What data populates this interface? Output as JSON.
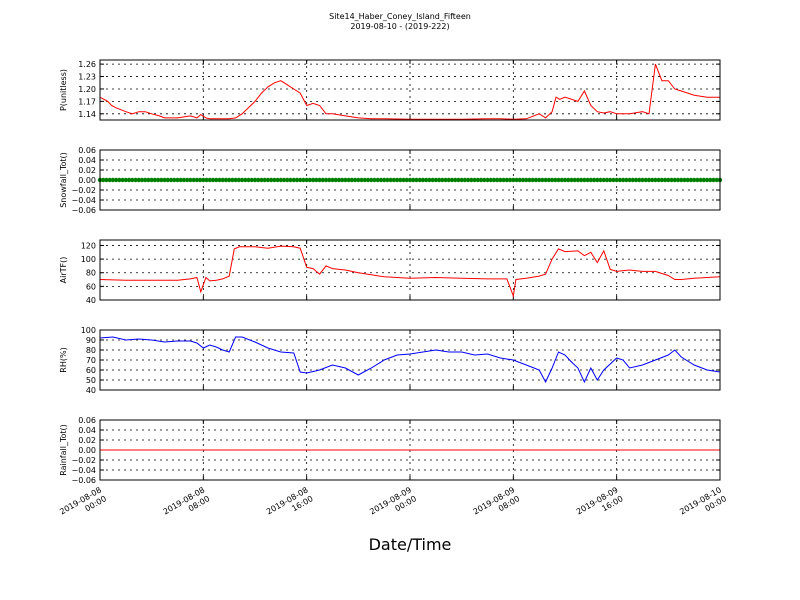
{
  "figure": {
    "title_line1": "Site14_Haber_Coney_Island_Fifteen",
    "title_line2": "2019-08-10 - (2019-222)",
    "xlabel": "Date/Time"
  },
  "chart_data": [
    {
      "type": "line",
      "ylabel": "P(unitless)",
      "color": "#ff0000",
      "xlim": [
        0,
        48
      ],
      "ylim": [
        1.125,
        1.27
      ],
      "yticks": [
        "1.26",
        "1.23",
        "1.20",
        "1.17",
        "1.14"
      ],
      "ytick_values": [
        1.26,
        1.23,
        1.2,
        1.17,
        1.14
      ],
      "grid": true,
      "x": [
        0,
        0.6,
        0.9,
        1.2,
        2,
        2.5,
        3,
        3.5,
        4,
        4.6,
        5,
        6,
        7,
        7.5,
        7.8,
        8.2,
        8.5,
        10,
        10.5,
        11,
        12,
        12.5,
        13,
        13.5,
        14,
        14.5,
        15,
        15.5,
        16,
        16.5,
        17,
        17.5,
        18,
        19,
        20,
        21,
        22,
        24,
        26,
        28,
        30,
        31,
        32,
        33,
        34,
        34.5,
        35,
        35.3,
        35.6,
        36,
        37,
        37.5,
        38,
        38.5,
        39,
        39.5,
        40,
        41,
        42,
        42.5,
        43,
        43.5,
        44,
        44.5,
        45,
        46,
        47,
        48
      ],
      "values": [
        1.18,
        1.17,
        1.16,
        1.155,
        1.145,
        1.14,
        1.145,
        1.145,
        1.14,
        1.135,
        1.13,
        1.13,
        1.135,
        1.13,
        1.138,
        1.13,
        1.128,
        1.128,
        1.13,
        1.14,
        1.17,
        1.19,
        1.205,
        1.215,
        1.22,
        1.21,
        1.2,
        1.19,
        1.16,
        1.165,
        1.16,
        1.14,
        1.14,
        1.135,
        1.13,
        1.128,
        1.128,
        1.127,
        1.127,
        1.127,
        1.128,
        1.128,
        1.127,
        1.128,
        1.14,
        1.13,
        1.145,
        1.18,
        1.175,
        1.18,
        1.17,
        1.195,
        1.16,
        1.145,
        1.142,
        1.145,
        1.14,
        1.14,
        1.145,
        1.14,
        1.26,
        1.22,
        1.22,
        1.2,
        1.195,
        1.185,
        1.18,
        1.18
      ]
    },
    {
      "type": "scatter",
      "ylabel": "Snowfall_Tot()",
      "color": "#008000",
      "xlim": [
        0,
        48
      ],
      "ylim": [
        -0.06,
        0.06
      ],
      "yticks": [
        "0.06",
        "0.04",
        "0.02",
        "0.00",
        "−0.02",
        "−0.04",
        "−0.06"
      ],
      "ytick_values": [
        0.06,
        0.04,
        0.02,
        0.0,
        -0.02,
        -0.04,
        -0.06
      ],
      "grid": true,
      "constant_value": 0.0
    },
    {
      "type": "line",
      "ylabel": "AirTF()",
      "color": "#ff0000",
      "xlim": [
        0,
        48
      ],
      "ylim": [
        40,
        128
      ],
      "yticks": [
        "120",
        "100",
        "80",
        "60",
        "40"
      ],
      "ytick_values": [
        120,
        100,
        80,
        60,
        40
      ],
      "grid": true,
      "x": [
        0,
        2,
        4,
        6,
        7,
        7.5,
        7.8,
        8.2,
        8.5,
        9,
        9.5,
        10,
        10.4,
        10.8,
        12,
        13,
        14,
        15,
        15.5,
        16,
        16.5,
        17,
        17.5,
        18,
        19,
        20,
        21,
        22,
        24,
        26,
        28,
        30,
        31.5,
        32,
        32.2,
        33,
        34,
        34.5,
        35,
        35.5,
        36,
        37,
        37.5,
        38,
        38.5,
        39,
        39.5,
        40,
        41,
        42,
        43,
        44,
        44.5,
        45,
        46,
        47,
        48
      ],
      "values": [
        70,
        69,
        69,
        69,
        71,
        73,
        52,
        73,
        68,
        69,
        71,
        75,
        115,
        118,
        118,
        116,
        119,
        118,
        116,
        88,
        86,
        78,
        90,
        86,
        84,
        80,
        77,
        74,
        72,
        73,
        72,
        71,
        71,
        46,
        70,
        72,
        75,
        78,
        100,
        115,
        111,
        112,
        105,
        110,
        95,
        112,
        85,
        82,
        84,
        82,
        82,
        76,
        70,
        70,
        72,
        73,
        74
      ]
    },
    {
      "type": "line",
      "ylabel": "RH(%)",
      "color": "#0000ff",
      "xlim": [
        0,
        48
      ],
      "ylim": [
        40,
        100
      ],
      "yticks": [
        "100",
        "90",
        "80",
        "70",
        "60",
        "50",
        "40"
      ],
      "ytick_values": [
        100,
        90,
        80,
        70,
        60,
        50,
        40
      ],
      "grid": true,
      "x": [
        0,
        1,
        2,
        3,
        4,
        5,
        6,
        7,
        7.5,
        8,
        8.5,
        9,
        9.5,
        10,
        10.5,
        11,
        12,
        13,
        14,
        15,
        15.5,
        16,
        17,
        18,
        19,
        20,
        21,
        22,
        23,
        24,
        25,
        26,
        27,
        28,
        29,
        30,
        31,
        32,
        33,
        34,
        34.5,
        35,
        35.5,
        36,
        36.5,
        37,
        37.5,
        38,
        38.5,
        39,
        40,
        40.5,
        41,
        42,
        43,
        44,
        44.5,
        45,
        46,
        47,
        48
      ],
      "values": [
        92,
        93,
        90,
        91,
        90,
        88,
        89,
        89,
        87,
        82,
        85,
        83,
        80,
        78,
        93,
        93,
        88,
        82,
        78,
        77,
        58,
        57,
        60,
        65,
        62,
        55,
        62,
        70,
        75,
        76,
        78,
        80,
        78,
        78,
        75,
        76,
        72,
        70,
        65,
        60,
        48,
        62,
        78,
        75,
        68,
        62,
        48,
        62,
        50,
        60,
        72,
        70,
        62,
        65,
        70,
        75,
        80,
        73,
        65,
        60,
        58
      ]
    },
    {
      "type": "line",
      "ylabel": "Rainfall_Tot()",
      "color": "#ff0000",
      "xlim": [
        0,
        48
      ],
      "ylim": [
        -0.06,
        0.06
      ],
      "yticks": [
        "0.06",
        "0.04",
        "0.02",
        "0.00",
        "−0.02",
        "−0.04",
        "−0.06"
      ],
      "ytick_values": [
        0.06,
        0.04,
        0.02,
        0.0,
        -0.02,
        -0.04,
        -0.06
      ],
      "grid": true,
      "x": [
        0,
        48
      ],
      "values": [
        0.0,
        0.0
      ]
    }
  ],
  "xaxis": {
    "ticks": [
      0,
      8,
      16,
      24,
      32,
      40,
      48
    ],
    "tick_labels": [
      {
        "date": "2019-08-08",
        "time": "00:00"
      },
      {
        "date": "2019-08-08",
        "time": "08:00"
      },
      {
        "date": "2019-08-08",
        "time": "16:00"
      },
      {
        "date": "2019-08-09",
        "time": "00:00"
      },
      {
        "date": "2019-08-09",
        "time": "08:00"
      },
      {
        "date": "2019-08-09",
        "time": "16:00"
      },
      {
        "date": "2019-08-10",
        "time": "00:00"
      }
    ]
  }
}
